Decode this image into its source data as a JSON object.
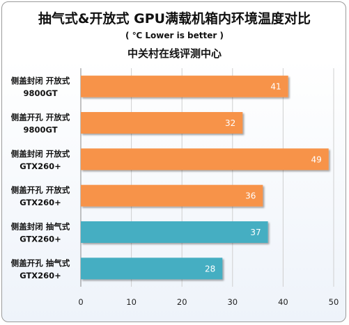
{
  "chart_data": {
    "type": "bar",
    "orientation": "horizontal",
    "title": "抽气式&开放式 GPU满载机箱内环境温度对比",
    "subtitle": "( ℃ Lower is better )",
    "source": "中关村在线评测中心",
    "xlim": [
      0,
      50
    ],
    "xticks": [
      "0",
      "10",
      "20",
      "30",
      "40",
      "50"
    ],
    "grid": true,
    "categories": [
      [
        "侧盖封闭 开放式",
        "9800GT"
      ],
      [
        "侧盖开孔 开放式",
        "9800GT"
      ],
      [
        "侧盖封闭 开放式",
        "GTX260+"
      ],
      [
        "侧盖开孔 开放式",
        "GTX260+"
      ],
      [
        "侧盖封闭 抽气式",
        "GTX260+"
      ],
      [
        "侧盖开孔 抽气式",
        "GTX260+"
      ]
    ],
    "values": [
      41,
      32,
      49,
      36,
      37,
      28
    ],
    "value_labels": [
      "41",
      "32",
      "49",
      "36",
      "37",
      "28"
    ],
    "bar_colors": [
      "#f7934a",
      "#f7934a",
      "#f7934a",
      "#f7934a",
      "#45aec2",
      "#45aec2"
    ]
  }
}
